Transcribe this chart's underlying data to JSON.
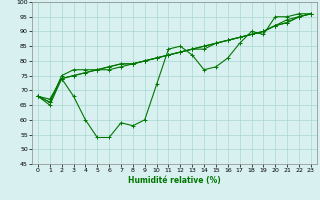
{
  "title": "",
  "xlabel": "Humidité relative (%)",
  "ylabel": "",
  "background_color": "#d8f0f0",
  "grid_color": "#a8d8d0",
  "line_color": "#007700",
  "ylim": [
    45,
    100
  ],
  "xlim": [
    -0.5,
    23.5
  ],
  "yticks": [
    45,
    50,
    55,
    60,
    65,
    70,
    75,
    80,
    85,
    90,
    95,
    100
  ],
  "xticks": [
    0,
    1,
    2,
    3,
    4,
    5,
    6,
    7,
    8,
    9,
    10,
    11,
    12,
    13,
    14,
    15,
    16,
    17,
    18,
    19,
    20,
    21,
    22,
    23
  ],
  "series": [
    [
      68,
      65,
      74,
      68,
      60,
      54,
      54,
      59,
      58,
      60,
      72,
      84,
      85,
      82,
      77,
      78,
      81,
      86,
      90,
      89,
      95,
      95,
      96,
      96
    ],
    [
      68,
      66,
      75,
      77,
      77,
      77,
      77,
      78,
      79,
      80,
      81,
      82,
      83,
      84,
      85,
      86,
      87,
      88,
      89,
      90,
      92,
      94,
      95,
      96
    ],
    [
      68,
      67,
      74,
      75,
      76,
      77,
      78,
      79,
      79,
      80,
      81,
      82,
      83,
      84,
      85,
      86,
      87,
      88,
      89,
      90,
      92,
      93,
      95,
      96
    ],
    [
      68,
      66,
      74,
      75,
      76,
      77,
      78,
      79,
      79,
      80,
      81,
      82,
      83,
      84,
      84,
      86,
      87,
      88,
      89,
      90,
      92,
      93,
      95,
      96
    ]
  ]
}
